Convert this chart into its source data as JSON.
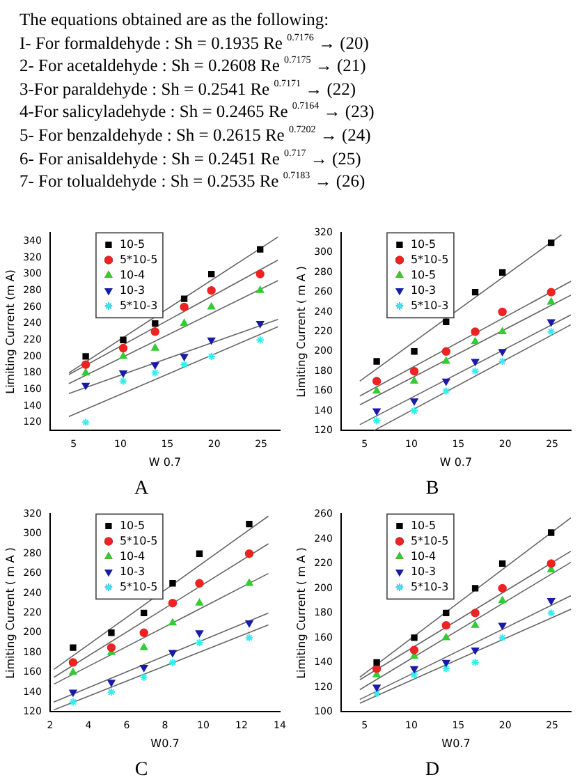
{
  "chart_data": [
    {
      "type": "other",
      "annotations": [
        "The equations obtained are as the following:",
        "I- For formaldehyde : Sh = 0.1935 Re $^{0.7176}$ → (20)",
        "2- For acetaldehyde : Sh = 0.2608 Re $^{0.7175}$ → (21)",
        "3-For paraldehyde : Sh = 0.2541 Re $^{0.7171}$ → (22)",
        "4-For salicyladehyde : Sh = 0.2465 Re $^{0.7164}$ → (23)",
        "5- For benzaldehyde : Sh = 0.2615 Re $^{0.7202}$ → (24)",
        "6- For anisaldehyde : Sh = 0.2451 Re $^{0.717}$ → (25)",
        "7- For tolualdehyde : Sh = 0.2535 Re $^{0.7183}$ → (26)"
      ]
    },
    {
      "type": "scatter",
      "title": "A",
      "xlabel": "W 0.7",
      "ylabel": "Limiting Current (m A)",
      "x": [
        6.3,
        10.3,
        13.7,
        16.8,
        19.7,
        24.9
      ],
      "xlim": [
        2.5,
        27
      ],
      "xticks": [
        5,
        10,
        15,
        20,
        25
      ],
      "ylim": [
        110,
        350
      ],
      "yticks": [
        120,
        140,
        160,
        180,
        200,
        220,
        240,
        260,
        280,
        300,
        320,
        340
      ],
      "grid": false,
      "legend": "top left",
      "series": [
        {
          "name": "10-5",
          "color": "#000000",
          "marker": "square",
          "values": [
            200,
            220,
            240,
            270,
            300,
            330
          ]
        },
        {
          "name": "5*10-5",
          "color": "#ee2222",
          "marker": "circle",
          "values": [
            190,
            210,
            230,
            260,
            280,
            300
          ]
        },
        {
          "name": "10-4",
          "color": "#33cc33",
          "marker": "triangle",
          "values": [
            180,
            200,
            210,
            240,
            260,
            280
          ]
        },
        {
          "name": "10-3",
          "color": "#1a1aaa",
          "marker": "triangle-down",
          "values": [
            165,
            180,
            190,
            200,
            220,
            240
          ]
        },
        {
          "name": "5*10-3",
          "color": "#33eeee",
          "marker": "cross",
          "values": [
            120,
            170,
            180,
            190,
            200,
            220
          ]
        },
        {
          "type": "line",
          "color": "#666666",
          "marker": "none",
          "x": [
            4.5,
            26.8
          ],
          "values": [
            180,
            345
          ]
        },
        {
          "type": "line",
          "color": "#666666",
          "marker": "none",
          "x": [
            4.5,
            26.8
          ],
          "values": [
            178,
            317
          ]
        },
        {
          "type": "line",
          "color": "#666666",
          "marker": "none",
          "x": [
            4.5,
            26.8
          ],
          "values": [
            167,
            292
          ]
        },
        {
          "type": "line",
          "color": "#666666",
          "marker": "none",
          "x": [
            4.5,
            26.8
          ],
          "values": [
            155,
            245
          ]
        },
        {
          "type": "line",
          "color": "#666666",
          "marker": "none",
          "x": [
            4.5,
            26.8
          ],
          "values": [
            127,
            236
          ]
        }
      ]
    },
    {
      "type": "scatter",
      "title": "B",
      "xlabel": "W 0.7",
      "ylabel": "Limiting Current ( m A )",
      "x": [
        6.3,
        10.3,
        13.7,
        16.8,
        19.7,
        24.9
      ],
      "xlim": [
        2.5,
        27
      ],
      "xticks": [
        5,
        10,
        15,
        20,
        25
      ],
      "ylim": [
        120,
        320
      ],
      "yticks": [
        120,
        140,
        160,
        180,
        200,
        220,
        240,
        260,
        280,
        300,
        320
      ],
      "grid": false,
      "legend": "top left",
      "series": [
        {
          "name": "10-5",
          "color": "#000000",
          "marker": "square",
          "values": [
            190,
            200,
            230,
            260,
            280,
            310
          ]
        },
        {
          "name": "5*10-5",
          "color": "#ee2222",
          "marker": "circle",
          "values": [
            170,
            180,
            200,
            220,
            240,
            260
          ]
        },
        {
          "name": "10-5",
          "color": "#33cc33",
          "marker": "triangle",
          "values": [
            160,
            170,
            190,
            210,
            220,
            250
          ]
        },
        {
          "name": "10-3",
          "color": "#1a1aaa",
          "marker": "triangle-down",
          "values": [
            140,
            150,
            170,
            190,
            200,
            230
          ]
        },
        {
          "name": "5*10-3",
          "color": "#33eeee",
          "marker": "cross",
          "values": [
            130,
            140,
            160,
            180,
            190,
            220
          ]
        },
        {
          "type": "line",
          "color": "#666666",
          "marker": "none",
          "x": [
            4.5,
            26
          ],
          "values": [
            170,
            318
          ]
        },
        {
          "type": "line",
          "color": "#666666",
          "marker": "none",
          "x": [
            4.5,
            27
          ],
          "values": [
            155,
            271
          ]
        },
        {
          "type": "line",
          "color": "#666666",
          "marker": "none",
          "x": [
            4.5,
            27
          ],
          "values": [
            146,
            257
          ]
        },
        {
          "type": "line",
          "color": "#666666",
          "marker": "none",
          "x": [
            4.5,
            27
          ],
          "values": [
            126,
            237
          ]
        },
        {
          "type": "line",
          "color": "#666666",
          "marker": "none",
          "x": [
            6,
            27
          ],
          "values": [
            120,
            227
          ]
        }
      ]
    },
    {
      "type": "scatter",
      "title": "C",
      "xlabel": "W0.7",
      "ylabel": "Limiting Current ( m A )",
      "x": [
        3.2,
        5.2,
        6.9,
        8.4,
        9.8,
        12.4
      ],
      "xlim": [
        2,
        14
      ],
      "xticks": [
        2,
        4,
        6,
        8,
        10,
        12,
        14
      ],
      "ylim": [
        120,
        320
      ],
      "yticks": [
        120,
        140,
        160,
        180,
        200,
        220,
        240,
        260,
        280,
        300,
        320
      ],
      "grid": false,
      "legend": "top left",
      "series": [
        {
          "name": "10-5",
          "color": "#000000",
          "marker": "square",
          "values": [
            185,
            200,
            220,
            250,
            280,
            310
          ]
        },
        {
          "name": "5*10-5",
          "color": "#ee2222",
          "marker": "circle",
          "values": [
            170,
            185,
            200,
            230,
            250,
            280
          ]
        },
        {
          "name": "10-4",
          "color": "#33cc33",
          "marker": "triangle",
          "values": [
            160,
            180,
            185,
            210,
            230,
            250
          ]
        },
        {
          "name": "10-3",
          "color": "#1a1aaa",
          "marker": "triangle-down",
          "values": [
            140,
            150,
            165,
            180,
            200,
            210
          ]
        },
        {
          "name": "5*10-5",
          "color": "#33eeee",
          "marker": "cross",
          "values": [
            130,
            140,
            155,
            170,
            190,
            195
          ]
        },
        {
          "type": "line",
          "color": "#666666",
          "marker": "none",
          "x": [
            2.2,
            13.4
          ],
          "values": [
            163,
            318
          ]
        },
        {
          "type": "line",
          "color": "#666666",
          "marker": "none",
          "x": [
            2.2,
            13.4
          ],
          "values": [
            155,
            290
          ]
        },
        {
          "type": "line",
          "color": "#666666",
          "marker": "none",
          "x": [
            2.2,
            13.4
          ],
          "values": [
            148,
            260
          ]
        },
        {
          "type": "line",
          "color": "#666666",
          "marker": "none",
          "x": [
            2.2,
            13.4
          ],
          "values": [
            130,
            220
          ]
        },
        {
          "type": "line",
          "color": "#666666",
          "marker": "none",
          "x": [
            2.2,
            13.4
          ],
          "values": [
            122,
            208
          ]
        }
      ]
    },
    {
      "type": "scatter",
      "title": "D",
      "xlabel": "W0.7",
      "ylabel": "Limiting Current ( m A )",
      "x": [
        6.3,
        10.3,
        13.7,
        16.8,
        19.7,
        24.9
      ],
      "xlim": [
        2.5,
        27
      ],
      "xticks": [
        5,
        10,
        15,
        20,
        25
      ],
      "ylim": [
        100,
        260
      ],
      "yticks": [
        100,
        120,
        140,
        160,
        180,
        200,
        220,
        240,
        260
      ],
      "grid": false,
      "legend": "top left",
      "series": [
        {
          "name": "10-5",
          "color": "#000000",
          "marker": "square",
          "values": [
            140,
            160,
            180,
            200,
            220,
            245
          ]
        },
        {
          "name": "5*10-5",
          "color": "#ee2222",
          "marker": "circle",
          "values": [
            135,
            150,
            170,
            180,
            200,
            220
          ]
        },
        {
          "name": "10-4",
          "color": "#33cc33",
          "marker": "triangle",
          "values": [
            130,
            145,
            160,
            170,
            190,
            215
          ]
        },
        {
          "name": "10-3",
          "color": "#1a1aaa",
          "marker": "triangle-down",
          "values": [
            120,
            135,
            140,
            150,
            170,
            190
          ]
        },
        {
          "name": "5*10-3",
          "color": "#33eeee",
          "marker": "cross",
          "values": [
            115,
            130,
            135,
            140,
            160,
            180
          ]
        },
        {
          "type": "line",
          "color": "#666666",
          "marker": "none",
          "x": [
            4.5,
            27
          ],
          "values": [
            128,
            257
          ]
        },
        {
          "type": "line",
          "color": "#666666",
          "marker": "none",
          "x": [
            4.5,
            27
          ],
          "values": [
            126,
            230
          ]
        },
        {
          "type": "line",
          "color": "#666666",
          "marker": "none",
          "x": [
            4.5,
            27
          ],
          "values": [
            118,
            221
          ]
        },
        {
          "type": "line",
          "color": "#666666",
          "marker": "none",
          "x": [
            4.5,
            27
          ],
          "values": [
            110,
            194
          ]
        },
        {
          "type": "line",
          "color": "#666666",
          "marker": "none",
          "x": [
            4.5,
            27
          ],
          "values": [
            107,
            183
          ]
        }
      ]
    }
  ]
}
